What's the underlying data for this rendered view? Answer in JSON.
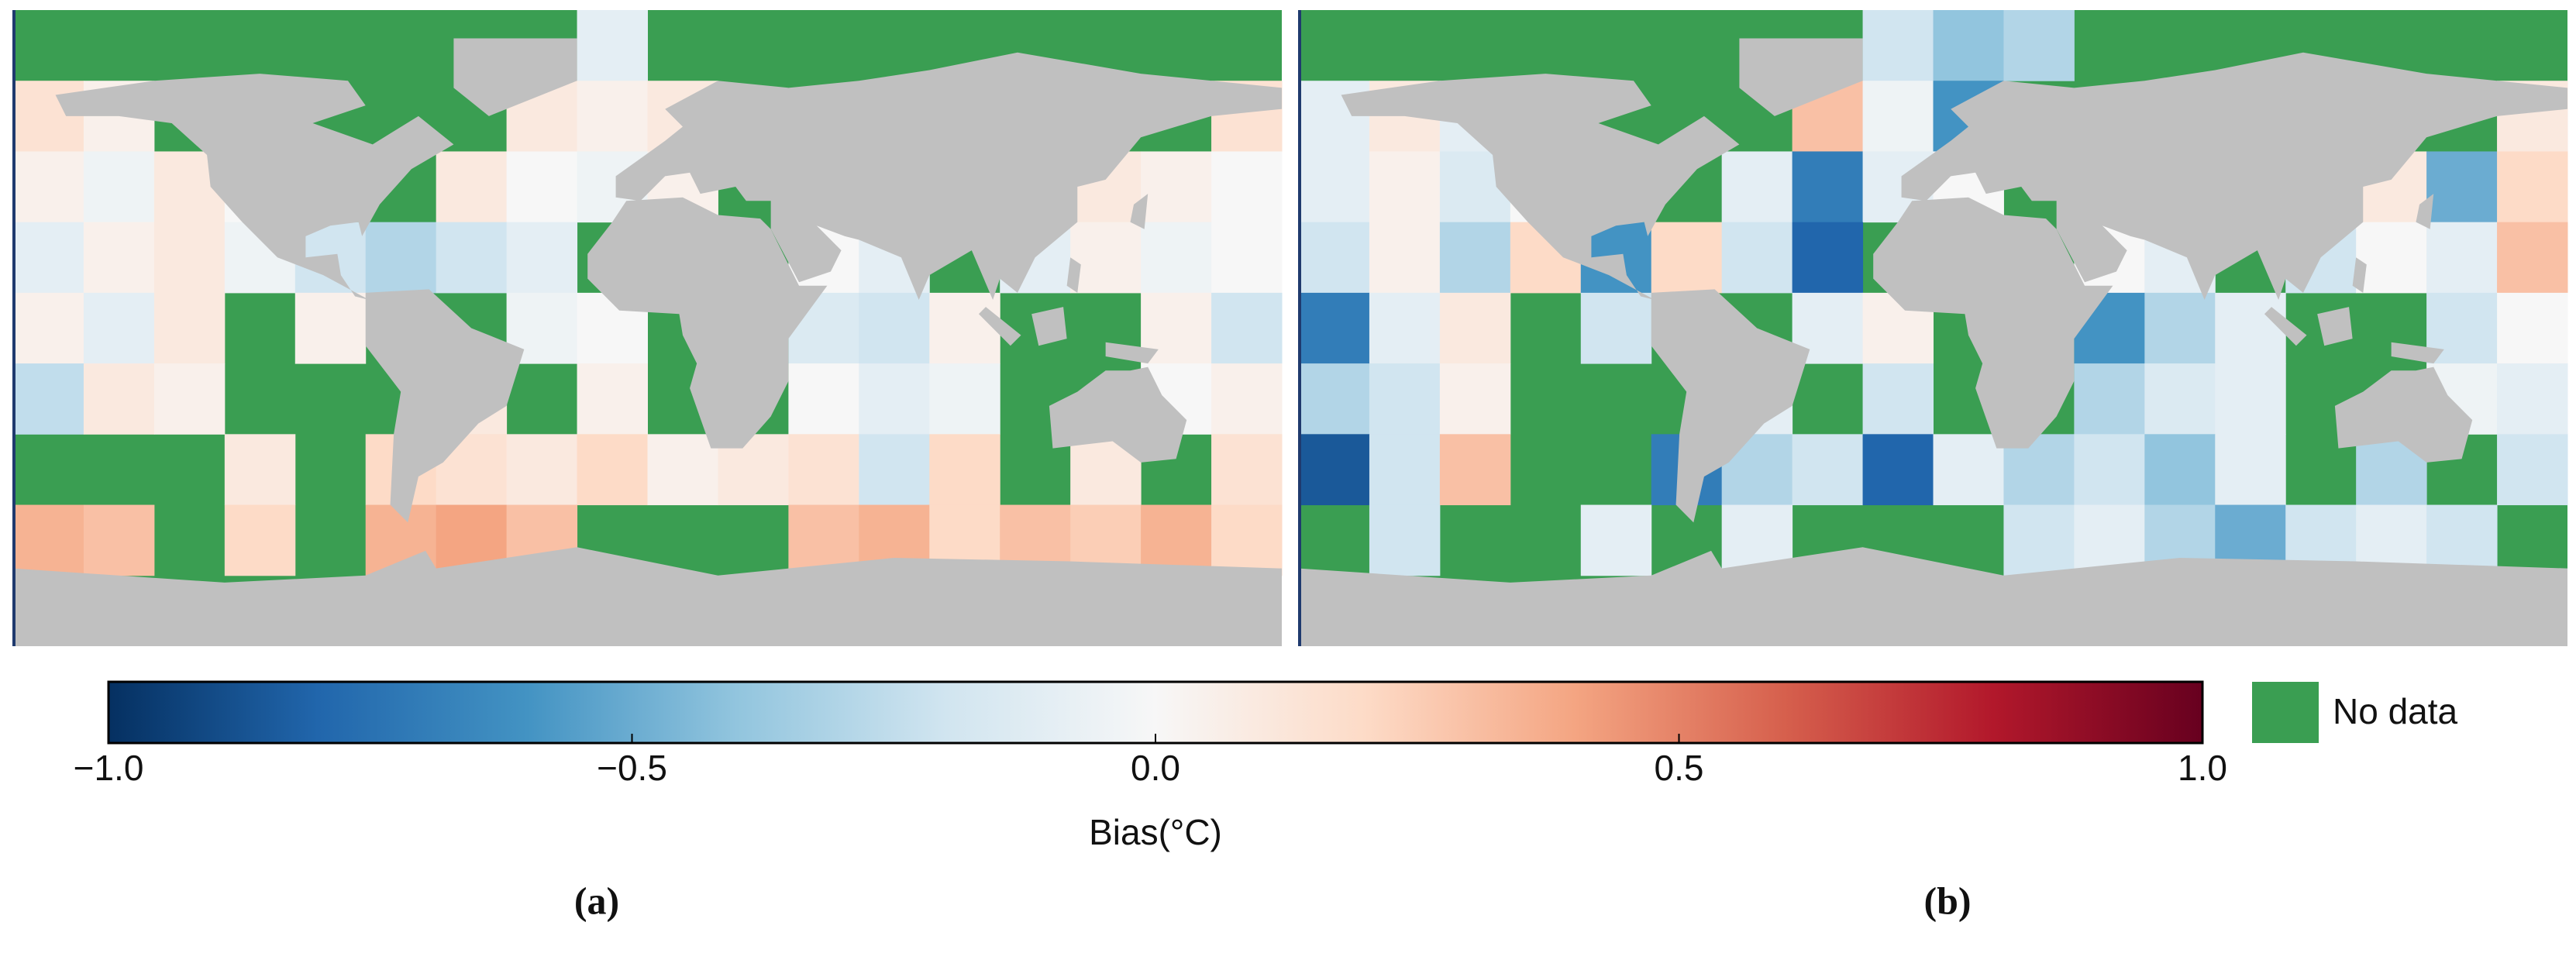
{
  "maps": [
    {
      "label": "(a)",
      "cells": [
        [
          null,
          null,
          null,
          null,
          null,
          null,
          null,
          null,
          -0.1,
          null,
          null,
          null,
          null,
          null,
          null,
          null,
          null,
          null
        ],
        [
          0.15,
          0.05,
          null,
          null,
          null,
          null,
          null,
          0.1,
          0.05,
          0.1,
          null,
          null,
          null,
          null,
          null,
          null,
          null,
          0.15
        ],
        [
          0.05,
          -0.05,
          0.1,
          0.0,
          null,
          null,
          0.1,
          0.0,
          -0.05,
          0.05,
          null,
          null,
          null,
          null,
          null,
          0.1,
          0.05,
          0.0
        ],
        [
          -0.1,
          0.05,
          0.1,
          -0.05,
          -0.2,
          -0.3,
          -0.2,
          -0.1,
          null,
          null,
          null,
          0.0,
          -0.1,
          null,
          -0.1,
          0.05,
          -0.05,
          0.0
        ],
        [
          0.05,
          -0.1,
          0.1,
          null,
          0.05,
          null,
          null,
          -0.05,
          0.0,
          null,
          null,
          -0.15,
          -0.2,
          0.05,
          null,
          null,
          0.05,
          -0.2
        ],
        [
          -0.25,
          0.1,
          0.05,
          null,
          null,
          null,
          0.1,
          null,
          0.05,
          null,
          null,
          0.0,
          -0.1,
          -0.05,
          null,
          null,
          0.0,
          0.05
        ],
        [
          null,
          null,
          null,
          0.1,
          null,
          0.2,
          0.15,
          0.1,
          0.2,
          0.05,
          0.1,
          0.15,
          -0.2,
          0.2,
          null,
          0.1,
          null,
          0.15
        ],
        [
          0.35,
          0.3,
          null,
          0.2,
          null,
          0.35,
          0.4,
          0.3,
          null,
          null,
          null,
          0.3,
          0.35,
          0.2,
          0.3,
          0.25,
          0.35,
          0.2
        ],
        [
          null,
          null,
          null,
          null,
          null,
          null,
          null,
          null,
          null,
          null,
          null,
          null,
          null,
          null,
          null,
          null,
          null,
          null
        ]
      ]
    },
    {
      "label": "(b)",
      "cells": [
        [
          null,
          null,
          null,
          null,
          null,
          null,
          null,
          null,
          -0.2,
          -0.4,
          -0.3,
          null,
          null,
          null,
          null,
          null,
          null,
          null
        ],
        [
          -0.1,
          0.1,
          -0.1,
          null,
          null,
          null,
          null,
          0.3,
          -0.05,
          -0.6,
          null,
          null,
          null,
          null,
          null,
          null,
          null,
          0.1
        ],
        [
          -0.1,
          0.05,
          -0.15,
          0.0,
          null,
          null,
          -0.1,
          -0.7,
          -0.1,
          0.0,
          null,
          null,
          null,
          null,
          null,
          0.1,
          -0.5,
          0.2
        ],
        [
          -0.2,
          0.05,
          -0.3,
          0.2,
          -0.6,
          0.2,
          -0.2,
          -0.8,
          null,
          null,
          null,
          0.0,
          -0.1,
          null,
          -0.2,
          0.0,
          -0.1,
          0.3
        ],
        [
          -0.7,
          -0.1,
          0.1,
          null,
          -0.2,
          null,
          null,
          -0.1,
          0.05,
          null,
          null,
          -0.6,
          -0.3,
          -0.1,
          null,
          null,
          -0.2,
          0.0
        ],
        [
          -0.3,
          -0.2,
          0.05,
          null,
          null,
          null,
          -0.1,
          null,
          -0.2,
          null,
          null,
          -0.3,
          -0.15,
          -0.1,
          null,
          null,
          -0.05,
          -0.1
        ],
        [
          -0.85,
          -0.2,
          0.3,
          null,
          null,
          -0.7,
          -0.3,
          -0.2,
          -0.8,
          -0.1,
          -0.3,
          -0.2,
          -0.4,
          -0.1,
          null,
          -0.3,
          null,
          -0.2
        ],
        [
          null,
          -0.2,
          null,
          null,
          -0.1,
          null,
          -0.1,
          null,
          null,
          null,
          -0.2,
          -0.1,
          -0.3,
          -0.5,
          -0.2,
          -0.1,
          -0.2,
          null
        ],
        [
          null,
          null,
          null,
          null,
          null,
          null,
          null,
          null,
          null,
          null,
          null,
          null,
          null,
          null,
          null,
          null,
          null,
          null
        ]
      ]
    }
  ],
  "colorbar": {
    "label": "Bias(°C)",
    "lim": [
      -1,
      1
    ],
    "ticks": [
      {
        "value": -1,
        "label": "−1.0"
      },
      {
        "value": -0.5,
        "label": "−0.5"
      },
      {
        "value": 0,
        "label": "0.0"
      },
      {
        "value": 0.5,
        "label": "0.5"
      },
      {
        "value": 1,
        "label": "1.0"
      }
    ],
    "colors": [
      "#053061",
      "#2166ac",
      "#4393c3",
      "#92c5de",
      "#d1e5f0",
      "#f7f7f7",
      "#fddbc7",
      "#f4a582",
      "#d6604d",
      "#b2182b",
      "#67001f"
    ]
  },
  "no_data": {
    "label": "No data",
    "color": "#3a9e52"
  },
  "land_color": "#c0c0c0"
}
